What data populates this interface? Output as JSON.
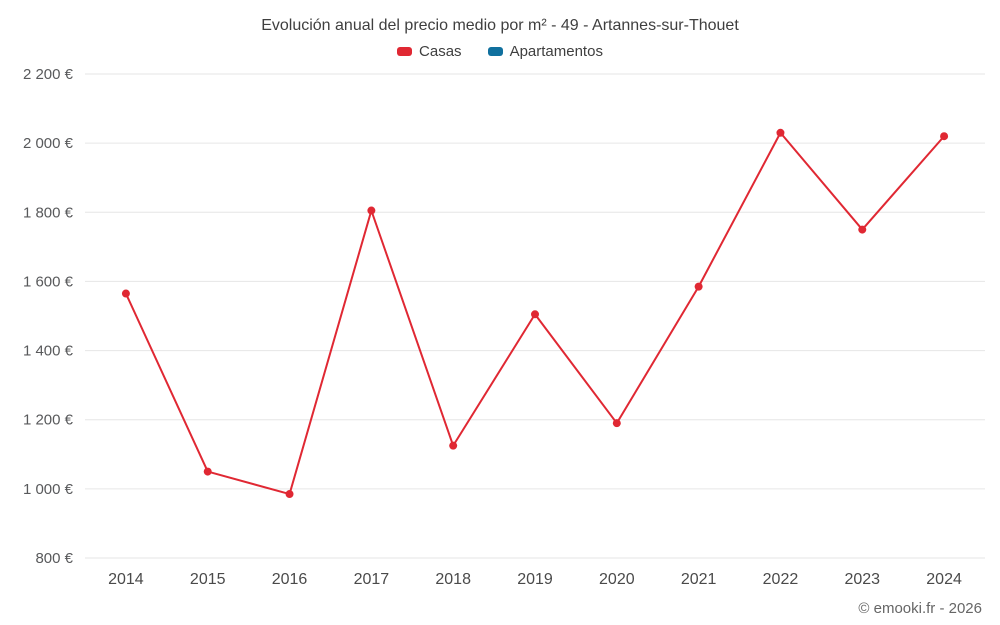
{
  "title": "Evolución anual del precio medio por m² - 49 - Artannes-sur-Thouet",
  "legend": [
    {
      "label": "Casas",
      "color": "#e02833"
    },
    {
      "label": "Apartamentos",
      "color": "#10709e"
    }
  ],
  "footer": "© emooki.fr - 2026",
  "chart_data": {
    "type": "line",
    "title": "Evolución anual del precio medio por m² - 49 - Artannes-sur-Thouet",
    "categories": [
      "2014",
      "2015",
      "2016",
      "2017",
      "2018",
      "2019",
      "2020",
      "2021",
      "2022",
      "2023",
      "2024"
    ],
    "series": [
      {
        "name": "Casas",
        "color": "#e02833",
        "values": [
          1565,
          1050,
          985,
          1805,
          1125,
          1505,
          1190,
          1585,
          2030,
          1750,
          2020
        ]
      },
      {
        "name": "Apartamentos",
        "color": "#10709e",
        "values": []
      }
    ],
    "xlabel": "",
    "ylabel": "",
    "ylim": [
      800,
      2200
    ],
    "yticks": [
      800,
      1000,
      1200,
      1400,
      1600,
      1800,
      2000,
      2200
    ],
    "ytick_labels": [
      "800 €",
      "1 000 €",
      "1 200 €",
      "1 400 €",
      "1 600 €",
      "1 800 €",
      "2 000 €",
      "2 200 €"
    ],
    "grid": true,
    "legend_position": "top",
    "marker": "circle",
    "marker_radius": 4
  }
}
